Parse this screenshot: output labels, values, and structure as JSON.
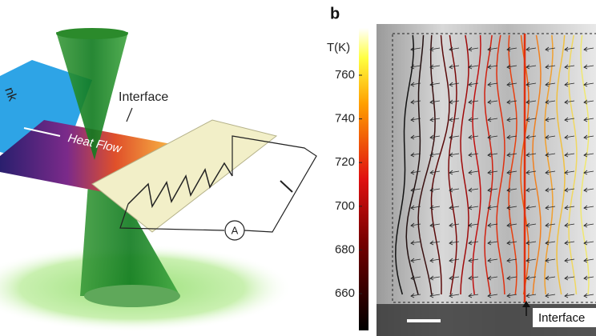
{
  "panel_a": {
    "sink_label": "nk",
    "interface_label": "Interface",
    "flow_label": "Heat Flow",
    "meter_label": "A"
  },
  "panel_b": {
    "panel_label": "b",
    "colorbar_title": "T(K)",
    "colorbar_ticks": [
      760,
      740,
      720,
      700,
      680,
      660
    ],
    "interface_label": "Interface"
  }
}
